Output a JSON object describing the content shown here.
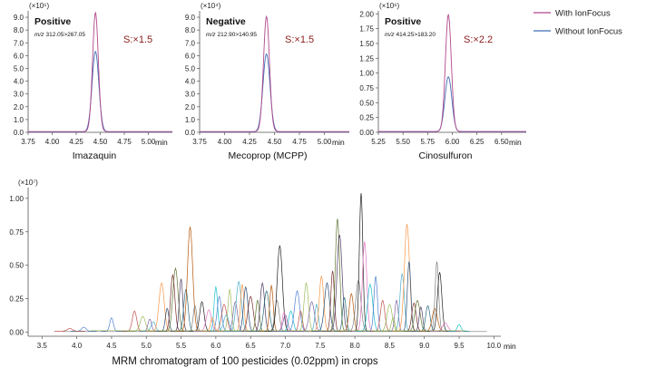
{
  "legend": [
    {
      "label": "With IonFocus",
      "color": "#b1488c"
    },
    {
      "label": "Without IonFocus",
      "color": "#3f6db5"
    }
  ],
  "chart_data": [
    {
      "type": "line",
      "exponent_label": "(×10⁵)",
      "mode": "Positive",
      "mz_prefix": "m/z",
      "mz": "312.05>267.05",
      "sn": "S:×1.5",
      "xlabel": "min",
      "compound": "Imazaquin",
      "xlim": [
        3.75,
        5.25
      ],
      "ylim": [
        0,
        9.5
      ],
      "x_ticks": [
        "3.75",
        "4.00",
        "4.25",
        "4.50",
        "4.75",
        "5.00"
      ],
      "y_ticks": [
        "0.0",
        "1.0",
        "2.0",
        "3.0",
        "4.0",
        "5.0",
        "6.0",
        "7.0",
        "8.0",
        "9.0"
      ],
      "series": [
        {
          "name": "With IonFocus",
          "peak_x": 4.45,
          "peak_y": 9.3,
          "width": 0.03,
          "baseline": 0.06
        },
        {
          "name": "Without IonFocus",
          "peak_x": 4.45,
          "peak_y": 6.3,
          "width": 0.035,
          "baseline": 0.03
        }
      ]
    },
    {
      "type": "line",
      "exponent_label": "(×10⁴)",
      "mode": "Negative",
      "mz_prefix": "m/z",
      "mz": "212.90>140.95",
      "sn": "S:×1.5",
      "xlabel": "min",
      "compound": "Mecoprop (MCPP)",
      "xlim": [
        3.75,
        5.25
      ],
      "ylim": [
        0,
        9.5
      ],
      "x_ticks": [
        "3.75",
        "4.00",
        "4.25",
        "4.50",
        "4.75",
        "5.00"
      ],
      "y_ticks": [
        "0.0",
        "1.0",
        "2.0",
        "3.0",
        "4.0",
        "5.0",
        "6.0",
        "7.0",
        "8.0",
        "9.0"
      ],
      "series": [
        {
          "name": "With IonFocus",
          "peak_x": 4.42,
          "peak_y": 9.0,
          "width": 0.03,
          "baseline": 0.06
        },
        {
          "name": "Without IonFocus",
          "peak_x": 4.42,
          "peak_y": 6.1,
          "width": 0.035,
          "baseline": 0.03
        }
      ]
    },
    {
      "type": "line",
      "exponent_label": "(×10⁶)",
      "mode": "Positive",
      "mz_prefix": "m/z",
      "mz": "414.25>183.20",
      "sn": "S:×2.2",
      "xlabel": "min",
      "compound": "Cinosulfuron",
      "xlim": [
        5.25,
        6.75
      ],
      "ylim": [
        0,
        2.05
      ],
      "x_ticks": [
        "5.25",
        "5.50",
        "5.75",
        "6.00",
        "6.25",
        "6.50"
      ],
      "y_ticks": [
        "0.00",
        "0.25",
        "0.50",
        "0.75",
        "1.00",
        "1.25",
        "1.50",
        "1.75",
        "2.00"
      ],
      "series": [
        {
          "name": "With IonFocus",
          "peak_x": 5.96,
          "peak_y": 1.97,
          "width": 0.03,
          "baseline": 0.015
        },
        {
          "name": "Without IonFocus",
          "peak_x": 5.96,
          "peak_y": 0.93,
          "width": 0.035,
          "baseline": 0.008
        }
      ]
    },
    {
      "type": "line",
      "exponent_label": "(×10⁷)",
      "xlabel": "min",
      "title": "MRM chromatogram of 100 pesticides (0.02ppm) in crops",
      "xlim": [
        3.3,
        10.1
      ],
      "ylim": [
        -0.03,
        1.08
      ],
      "x_ticks": [
        "3.5",
        "4.0",
        "4.5",
        "5.0",
        "5.5",
        "6.0",
        "6.5",
        "7.0",
        "7.5",
        "8.0",
        "8.5",
        "9.0",
        "9.5",
        "10.0",
        "10.0"
      ],
      "y_ticks": [
        "0.00",
        "0.25",
        "0.50",
        "0.75",
        "1.00"
      ],
      "peaks": [
        [
          4.5,
          0.1
        ],
        [
          4.83,
          0.15
        ],
        [
          4.95,
          0.11
        ],
        [
          5.05,
          0.09
        ],
        [
          5.1,
          0.07
        ],
        [
          5.22,
          0.36
        ],
        [
          5.3,
          0.17
        ],
        [
          5.38,
          0.42
        ],
        [
          5.42,
          0.47
        ],
        [
          5.5,
          0.39
        ],
        [
          5.57,
          0.31
        ],
        [
          5.63,
          0.78
        ],
        [
          5.7,
          0.19
        ],
        [
          5.8,
          0.22
        ],
        [
          5.9,
          0.16
        ],
        [
          6.0,
          0.33
        ],
        [
          6.05,
          0.26
        ],
        [
          6.12,
          0.2
        ],
        [
          6.2,
          0.31
        ],
        [
          6.28,
          0.22
        ],
        [
          6.33,
          0.37
        ],
        [
          6.38,
          0.35
        ],
        [
          6.43,
          0.33
        ],
        [
          6.5,
          0.26
        ],
        [
          6.6,
          0.23
        ],
        [
          6.67,
          0.36
        ],
        [
          6.73,
          0.3
        ],
        [
          6.8,
          0.34
        ],
        [
          6.88,
          0.23
        ],
        [
          6.92,
          0.64
        ],
        [
          6.98,
          0.14
        ],
        [
          7.08,
          0.15
        ],
        [
          7.17,
          0.3
        ],
        [
          7.22,
          0.15
        ],
        [
          7.3,
          0.36
        ],
        [
          7.38,
          0.22
        ],
        [
          7.45,
          0.2
        ],
        [
          7.52,
          0.41
        ],
        [
          7.6,
          0.36
        ],
        [
          7.68,
          0.45
        ],
        [
          7.75,
          0.84
        ],
        [
          7.78,
          0.72
        ],
        [
          7.85,
          0.25
        ],
        [
          7.95,
          0.28
        ],
        [
          8.05,
          0.38
        ],
        [
          8.09,
          1.03
        ],
        [
          8.14,
          0.67
        ],
        [
          8.22,
          0.35
        ],
        [
          8.3,
          0.41
        ],
        [
          8.4,
          0.23
        ],
        [
          8.5,
          0.2
        ],
        [
          8.6,
          0.23
        ],
        [
          8.68,
          0.43
        ],
        [
          8.75,
          0.8
        ],
        [
          8.78,
          0.52
        ],
        [
          8.85,
          0.21
        ],
        [
          8.9,
          0.23
        ],
        [
          8.95,
          0.18
        ],
        [
          9.05,
          0.19
        ],
        [
          9.15,
          0.17
        ],
        [
          9.18,
          0.52
        ],
        [
          9.22,
          0.44
        ],
        [
          9.3,
          0.06
        ],
        [
          9.5,
          0.05
        ],
        [
          4.1,
          0.03
        ],
        [
          3.9,
          0.02
        ],
        [
          8.55,
          0.1
        ],
        [
          7.0,
          0.12
        ],
        [
          6.15,
          0.12
        ],
        [
          5.95,
          0.1
        ]
      ]
    }
  ],
  "small_palette": [
    "#b1488c",
    "#3f6db5"
  ],
  "big_palette": [
    "#4e7fcf",
    "#c0504d",
    "#9bbb59",
    "#8064a2",
    "#4bacc6",
    "#f79646",
    "#2c4d75",
    "#772c2a",
    "#5f7530",
    "#4d3b62",
    "#276a7c",
    "#b65708",
    "#7f7f7f",
    "#1f1f1f",
    "#e377c2",
    "#17becf"
  ]
}
